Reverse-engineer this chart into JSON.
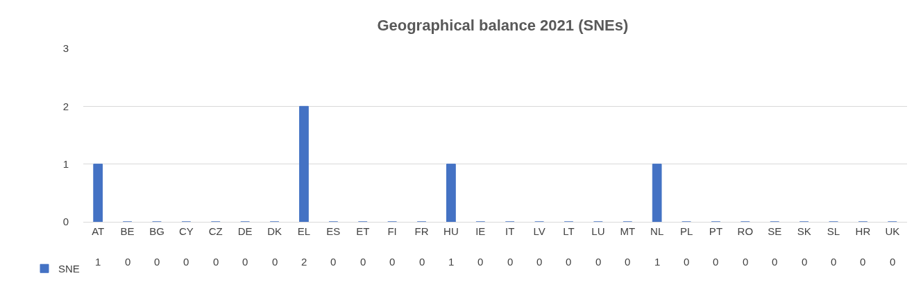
{
  "chart_data": {
    "type": "bar",
    "title": "Geographical balance 2021 (SNEs)",
    "categories": [
      "AT",
      "BE",
      "BG",
      "CY",
      "CZ",
      "DE",
      "DK",
      "EL",
      "ES",
      "ET",
      "FI",
      "FR",
      "HU",
      "IE",
      "IT",
      "LV",
      "LT",
      "LU",
      "MT",
      "NL",
      "PL",
      "PT",
      "RO",
      "SE",
      "SK",
      "SL",
      "HR",
      "UK"
    ],
    "series": [
      {
        "name": "SNE",
        "color": "#4472c4",
        "values": [
          1,
          0,
          0,
          0,
          0,
          0,
          0,
          2,
          0,
          0,
          0,
          0,
          1,
          0,
          0,
          0,
          0,
          0,
          0,
          1,
          0,
          0,
          0,
          0,
          0,
          0,
          0,
          0
        ]
      }
    ],
    "ylim": [
      0,
      3
    ],
    "yticks": [
      0,
      1,
      2,
      3
    ],
    "grid": "y",
    "legend": "bottom left",
    "data_labels": true
  }
}
